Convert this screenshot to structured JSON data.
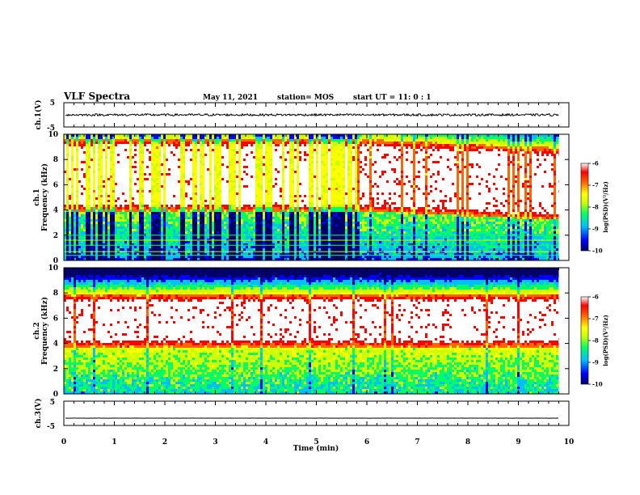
{
  "header": {
    "title": "VLF Spectra",
    "date": "May 11, 2021",
    "station": "station= MOS",
    "start": "start  UT =   11: 0  : 1"
  },
  "chart_data": {
    "type": "heatmap",
    "xlabel": "Time  (min)",
    "xlim": [
      0,
      10
    ],
    "x_ticks": [
      "0",
      "1",
      "2",
      "3",
      "4",
      "5",
      "6",
      "7",
      "8",
      "9",
      "10"
    ],
    "panels": [
      {
        "id": "ch1_waveform",
        "type": "line",
        "ylabel": "ch.1(V)",
        "ylim": [
          -5,
          5
        ],
        "y_ticks": [
          "5",
          "-5"
        ],
        "baseline": 0,
        "data_end_min": 9.8
      },
      {
        "id": "ch1_spectrogram",
        "type": "heatmap",
        "ylabel": "ch.1 Frequency (kHz)",
        "ylim": [
          0,
          10
        ],
        "y_ticks": [
          "0",
          "2",
          "4",
          "6",
          "8",
          "10"
        ],
        "data_end_min": 9.8,
        "description_series": [
          {
            "name": "broadband emission band (kHz)",
            "x": [
              0,
              5.8,
              9.8
            ],
            "low": [
              4.0,
              4.0,
              3.3
            ],
            "high": [
              9.7,
              9.7,
              9.0
            ]
          },
          {
            "name": "narrowband lines (kHz)",
            "values": [
              0.4,
              0.7,
              1.2,
              1.6,
              2.0
            ]
          }
        ]
      },
      {
        "id": "ch2_spectrogram",
        "type": "heatmap",
        "ylabel": "ch.2 Frequency (kHz)",
        "ylim": [
          0,
          10
        ],
        "y_ticks": [
          "0",
          "2",
          "4",
          "6",
          "8",
          "10"
        ],
        "data_end_min": 9.8,
        "description_series": [
          {
            "name": "broadband emission band (kHz)",
            "x": [
              0,
              9.8
            ],
            "low": [
              3.8,
              3.8
            ],
            "high": [
              8.0,
              8.0
            ]
          }
        ]
      },
      {
        "id": "ch3_waveform",
        "type": "line",
        "ylabel": "ch.3(V)",
        "ylim": [
          -5,
          5
        ],
        "y_ticks": [
          "5",
          "-5"
        ],
        "baseline": -2,
        "data_end_min": 9.8
      }
    ],
    "colorbars": [
      {
        "panel": "ch1_spectrogram",
        "label": "log(PSD)(V²/Hz)",
        "range": [
          -10,
          -6
        ],
        "ticks": [
          "-6",
          "-7",
          "-8",
          "-9",
          "-10"
        ]
      },
      {
        "panel": "ch2_spectrogram",
        "label": "log(PSD)(V²/Hz)",
        "range": [
          -10,
          -6
        ],
        "ticks": [
          "-6",
          "-7",
          "-8",
          "-9",
          "-10"
        ]
      }
    ],
    "colormap": [
      "#000066",
      "#0000ff",
      "#00bfff",
      "#00ff66",
      "#ccff00",
      "#ffff00",
      "#ff6600",
      "#ff0000",
      "#ffffff"
    ]
  }
}
